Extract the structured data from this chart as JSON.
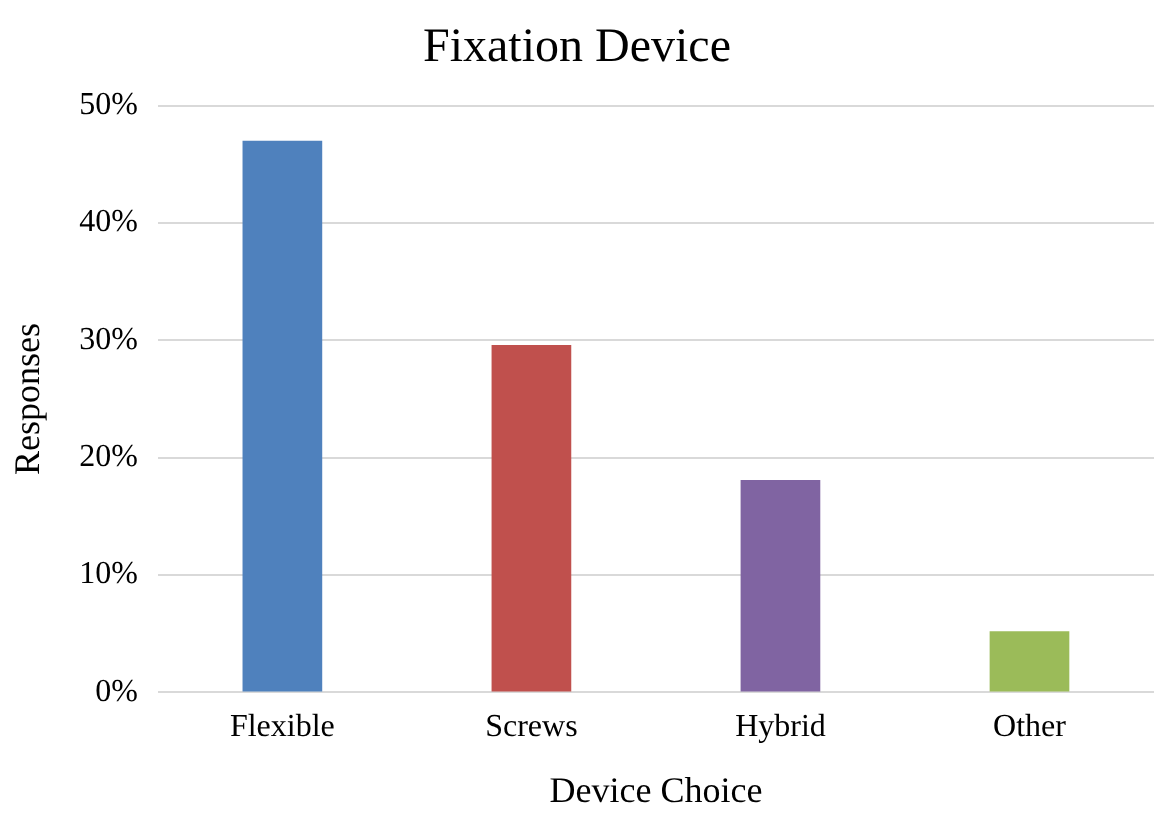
{
  "chart_data": {
    "type": "bar",
    "title": "Fixation Device",
    "xlabel": "Device Choice",
    "ylabel": "Responses",
    "categories": [
      "Flexible",
      "Screws",
      "Hybrid",
      "Other"
    ],
    "values": [
      47.0,
      29.6,
      18.1,
      5.2
    ],
    "colors": [
      "#4f81bd",
      "#c0504d",
      "#8064a2",
      "#9bbb59"
    ],
    "ylim": [
      0,
      50
    ],
    "yticks": [
      {
        "value": 0,
        "label": "0%"
      },
      {
        "value": 10,
        "label": "10%"
      },
      {
        "value": 20,
        "label": "20%"
      },
      {
        "value": 30,
        "label": "30%"
      },
      {
        "value": 40,
        "label": "40%"
      },
      {
        "value": 50,
        "label": "50%"
      }
    ],
    "grid": "y",
    "legend": false
  }
}
